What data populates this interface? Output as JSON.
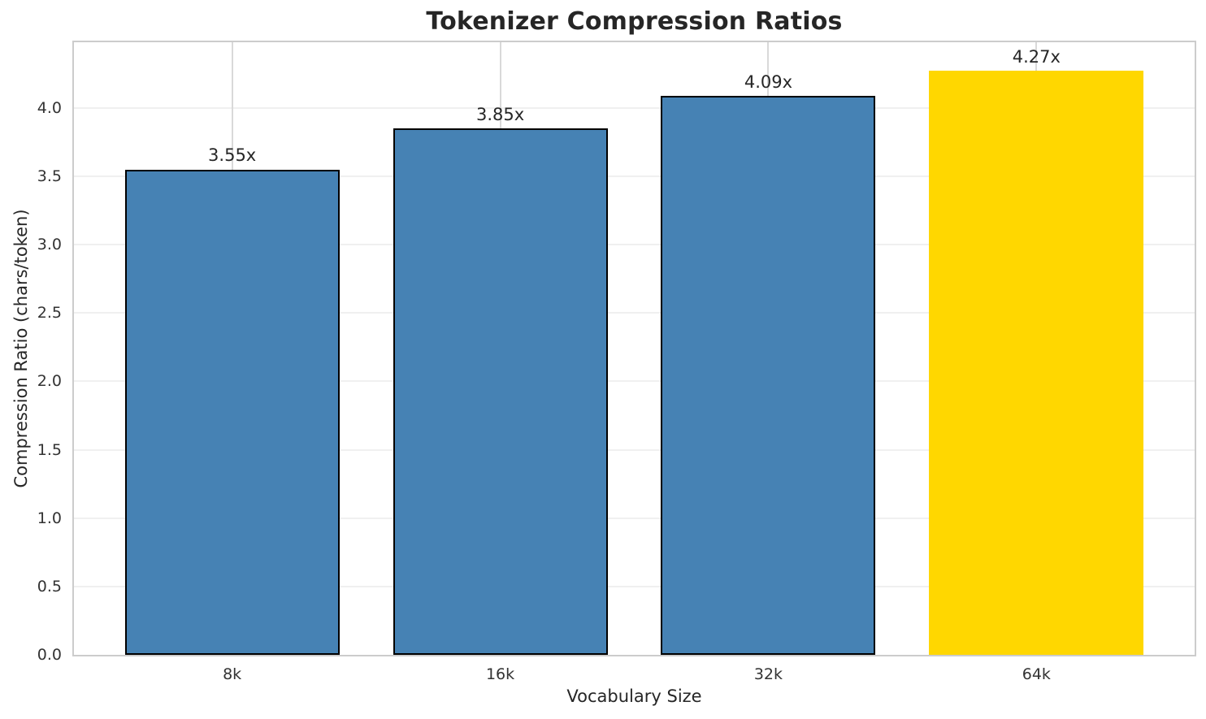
{
  "chart_data": {
    "type": "bar",
    "title": "Tokenizer Compression Ratios",
    "xlabel": "Vocabulary Size",
    "ylabel": "Compression Ratio (chars/token)",
    "categories": [
      "8k",
      "16k",
      "32k",
      "64k"
    ],
    "values": [
      3.55,
      3.85,
      4.09,
      4.27
    ],
    "bar_labels": [
      "3.55x",
      "3.85x",
      "4.09x",
      "4.27x"
    ],
    "bar_colors": [
      "#4682B4",
      "#4682B4",
      "#4682B4",
      "#FFD700"
    ],
    "bar_edgecolors": [
      "#000000",
      "#000000",
      "#000000",
      "none"
    ],
    "highlight_index": 3,
    "ylim": [
      0,
      4.48
    ],
    "yticks": [
      0.0,
      0.5,
      1.0,
      1.5,
      2.0,
      2.5,
      3.0,
      3.5,
      4.0
    ],
    "ytick_labels": [
      "0.0",
      "0.5",
      "1.0",
      "1.5",
      "2.0",
      "2.5",
      "3.0",
      "3.5",
      "4.0"
    ],
    "grid": true,
    "legend": false,
    "style": {
      "hgrid_color": "#f0f0f0",
      "vgrid_color": "#d9d9d9",
      "spine_color": "#cccccc",
      "text_color": "#262626",
      "tick_color": "#333333",
      "background": "#ffffff"
    }
  }
}
